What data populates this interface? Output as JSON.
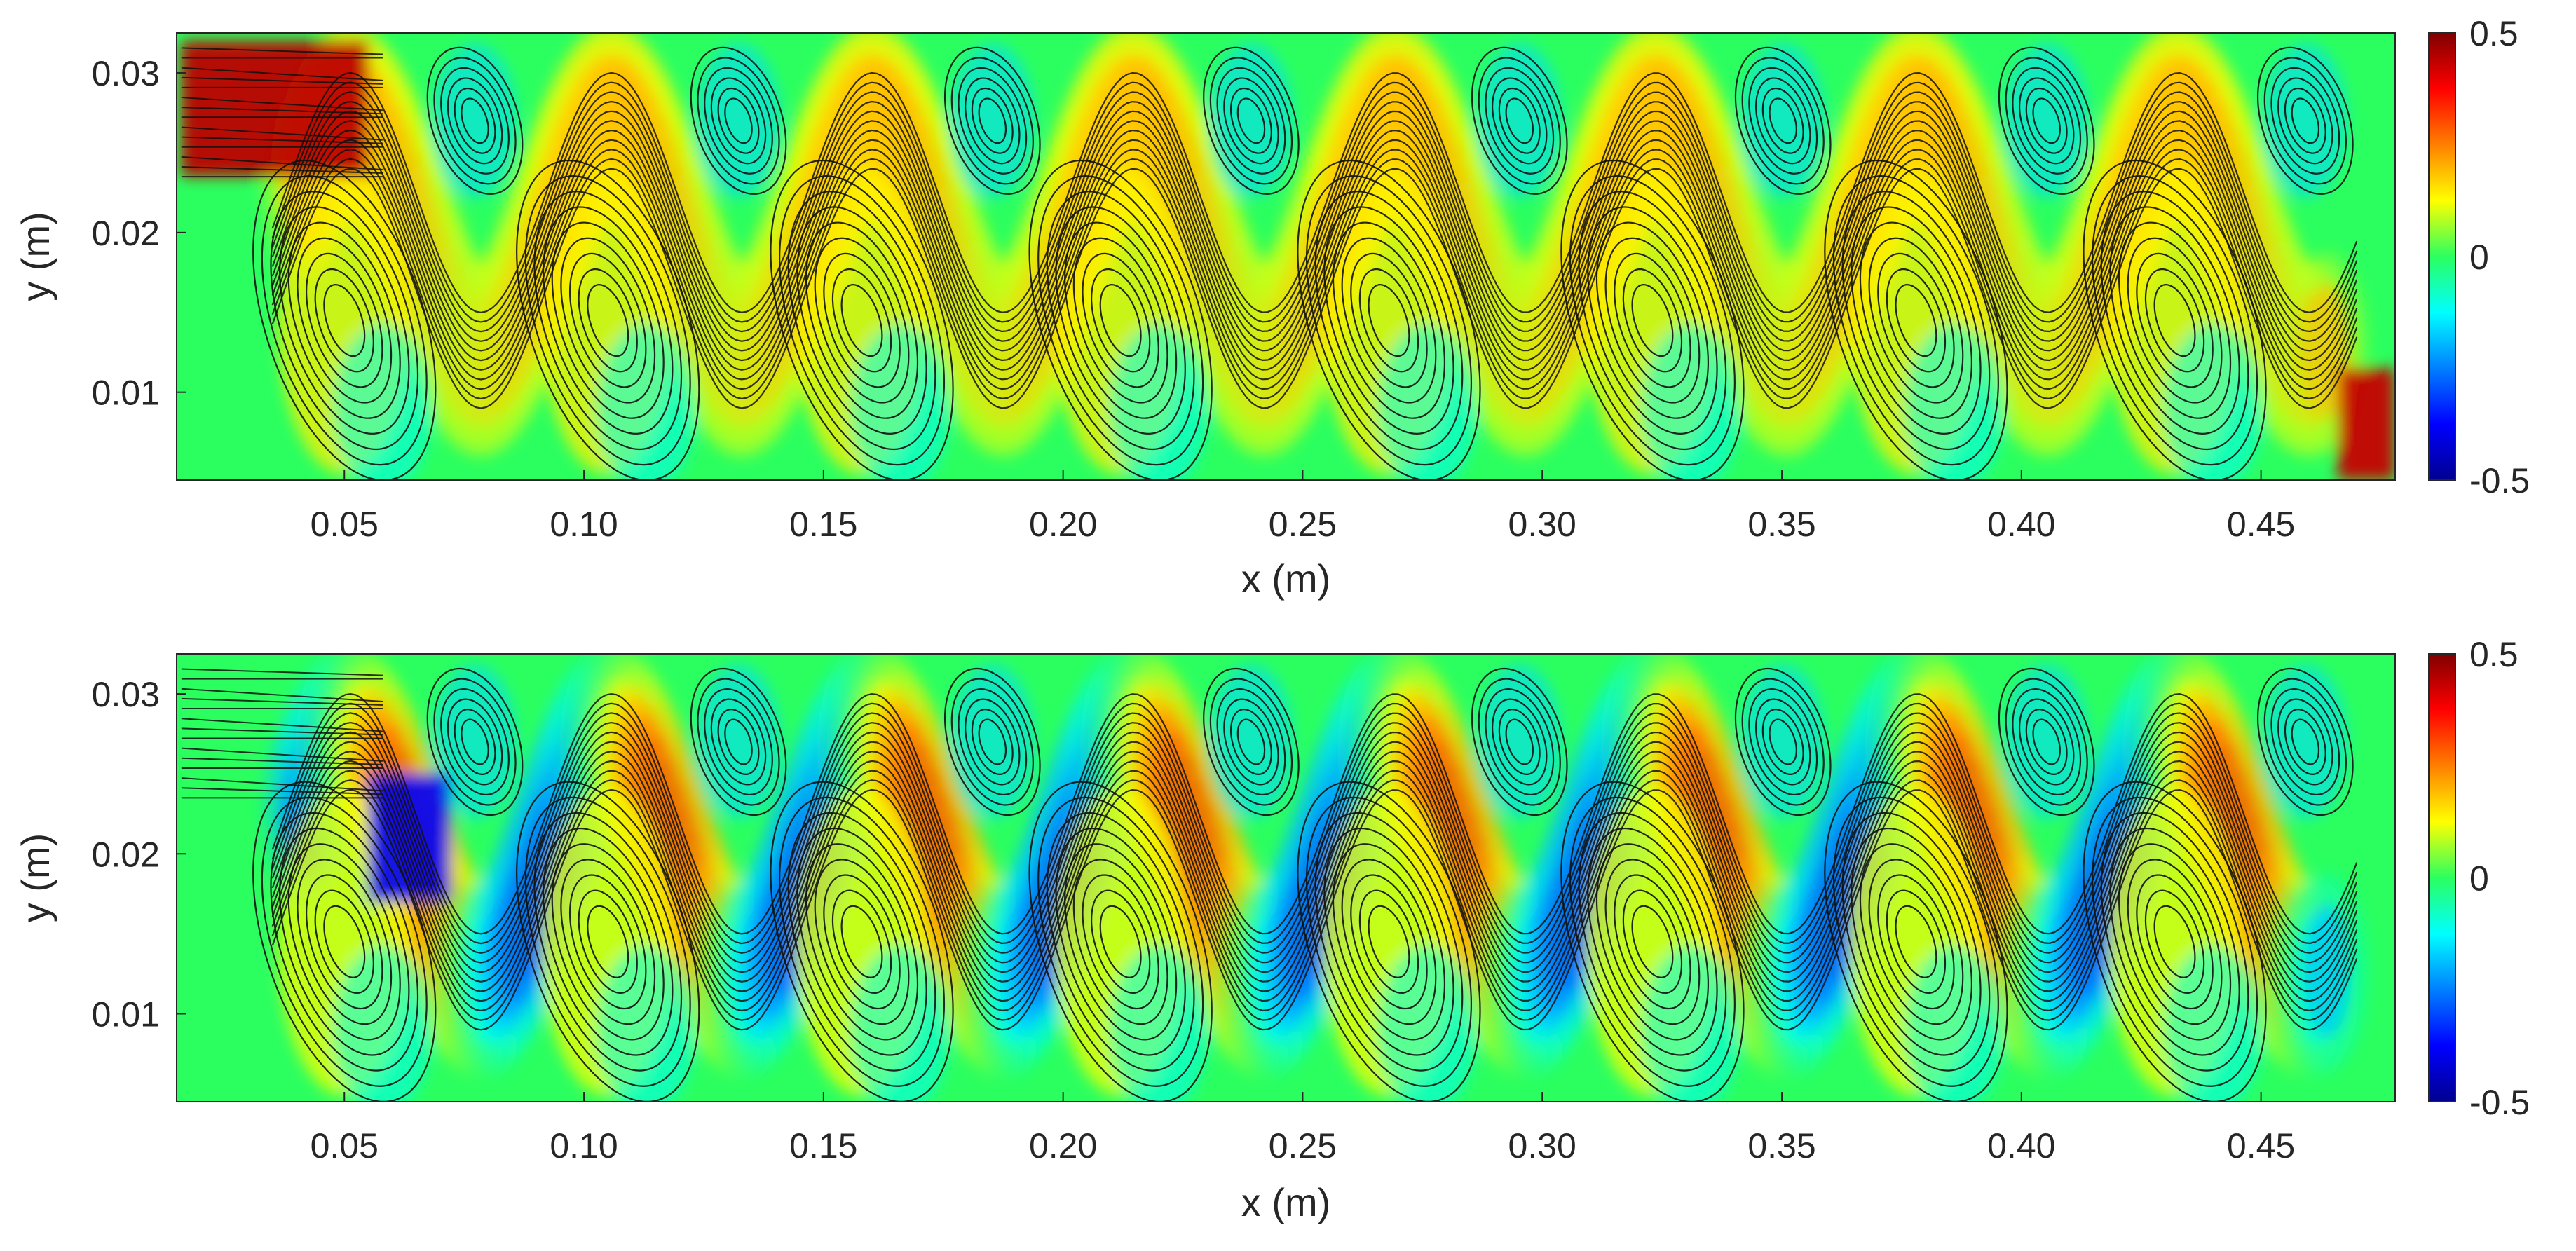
{
  "chart_data": [
    {
      "type": "heatmap",
      "panel": "top",
      "xlabel": "x (m)",
      "ylabel": "y (m)",
      "xlim": [
        0.015,
        0.478
      ],
      "ylim": [
        0.0045,
        0.0325
      ],
      "xticks": [
        0.05,
        0.1,
        0.15,
        0.2,
        0.25,
        0.3,
        0.35,
        0.4,
        0.45
      ],
      "xtick_labels": [
        "0.05",
        "0.10",
        "0.15",
        "0.20",
        "0.25",
        "0.30",
        "0.35",
        "0.40",
        "0.45"
      ],
      "yticks": [
        0.01,
        0.02,
        0.03
      ],
      "ytick_labels": [
        "0.01",
        "0.02",
        "0.03"
      ],
      "colorbar": {
        "min": -0.5,
        "max": 0.5,
        "tick_labels": [
          "0.5",
          "0",
          "-0.5"
        ],
        "colormap": "jet"
      },
      "background_value": 0,
      "field": "serpentine band, positive along channel centre",
      "vortex_centers_x": [
        0.05,
        0.105,
        0.158,
        0.212,
        0.268,
        0.323,
        0.378,
        0.432
      ],
      "streamlines": true
    },
    {
      "type": "heatmap",
      "panel": "bottom",
      "xlabel": "x (m)",
      "ylabel": "y (m)",
      "xlim": [
        0.015,
        0.478
      ],
      "ylim": [
        0.0045,
        0.0325
      ],
      "xticks": [
        0.05,
        0.1,
        0.15,
        0.2,
        0.25,
        0.3,
        0.35,
        0.4,
        0.45
      ],
      "xtick_labels": [
        "0.05",
        "0.10",
        "0.15",
        "0.20",
        "0.25",
        "0.30",
        "0.35",
        "0.40",
        "0.45"
      ],
      "yticks": [
        0.01,
        0.02,
        0.03
      ],
      "ytick_labels": [
        "0.01",
        "0.02",
        "0.03"
      ],
      "colorbar": {
        "min": -0.5,
        "max": 0.5,
        "tick_labels": [
          "0.5",
          "0",
          "-0.5"
        ],
        "colormap": "jet"
      },
      "background_value": 0,
      "field": "alternating positive / negative lobes along the serpentine band",
      "vortex_centers_x": [
        0.05,
        0.105,
        0.158,
        0.212,
        0.268,
        0.323,
        0.378,
        0.432
      ],
      "streamlines": true
    }
  ]
}
